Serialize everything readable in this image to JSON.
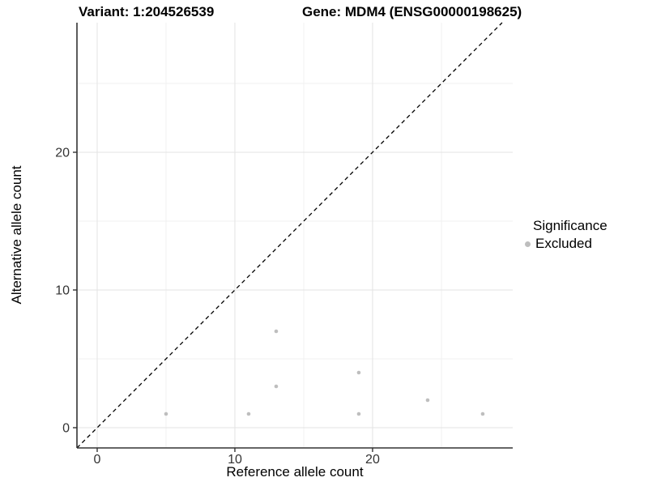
{
  "titles": {
    "variant": "Variant: 1:204526539",
    "gene": "Gene: MDM4 (ENSG00000198625)"
  },
  "axes": {
    "x_label": "Reference allele count",
    "y_label": "Alternative allele count"
  },
  "legend": {
    "title": "Significance",
    "items": [
      {
        "label": "Excluded",
        "color": "#bebebe"
      }
    ]
  },
  "colors": {
    "background": "#ffffff",
    "grid_major": "#e3e3e3",
    "grid_minor": "#f1f1f1",
    "axis_line": "#333333",
    "tick_mark": "#333333",
    "tick_label": "#333333",
    "point": "#bebebe",
    "reference_line": "#000000"
  },
  "chart_data": {
    "type": "scatter",
    "title": "Variant: 1:204526539    Gene: MDM4 (ENSG00000198625)",
    "xlabel": "Reference allele count",
    "ylabel": "Alternative allele count",
    "xlim": [
      -1.47,
      30.18
    ],
    "ylim": [
      -1.47,
      29.41
    ],
    "x_ticks": [
      0,
      10,
      20
    ],
    "y_ticks": [
      0,
      10,
      20
    ],
    "x_minor_ticks": [
      5,
      15,
      25
    ],
    "y_minor_ticks": [
      5,
      15,
      25
    ],
    "grid": "major+minor",
    "legend_position": "right",
    "series": [
      {
        "name": "Excluded",
        "color": "#bebebe",
        "marker": "circle",
        "points": [
          [
            5,
            1
          ],
          [
            11,
            1
          ],
          [
            13,
            3
          ],
          [
            13,
            7
          ],
          [
            19,
            1
          ],
          [
            19,
            4
          ],
          [
            24,
            2
          ],
          [
            28,
            1
          ]
        ]
      }
    ],
    "reference_line": {
      "slope": 1,
      "intercept": 0,
      "style": "dashed",
      "color": "#000000"
    }
  }
}
